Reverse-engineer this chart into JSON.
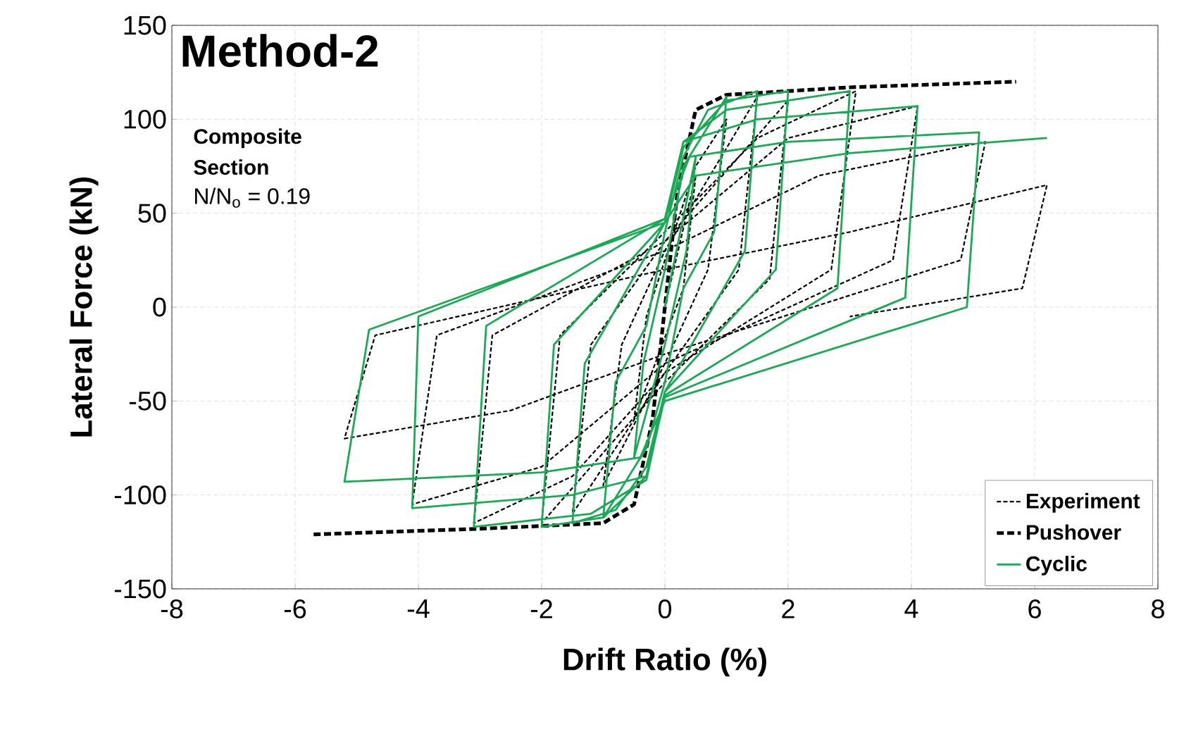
{
  "chart_data": {
    "type": "line",
    "title": "Method-2",
    "xlabel": "Drift Ratio (%)",
    "ylabel": "Lateral Force (kN)",
    "annotations": [
      "Composite Section",
      "N/N$_{o}$ = 0.19"
    ],
    "xlim": [
      -8,
      8
    ],
    "xticks": [
      -8,
      -6,
      -4,
      -2,
      0,
      2,
      4,
      6,
      8
    ],
    "ylim": [
      -150,
      150
    ],
    "yticks": [
      -150,
      -100,
      -50,
      0,
      50,
      100,
      150
    ],
    "grid": true,
    "legend": "bottom right",
    "marker": "none",
    "series": [
      {
        "name": "Experiment",
        "color": "#000000",
        "line_style": "dashed",
        "x": [
          0,
          0.5,
          0.3,
          -0.5,
          -0.3,
          0.5,
          1,
          0.7,
          0,
          -1,
          -0.7,
          0,
          1.5,
          1.2,
          0,
          -1.5,
          -1.2,
          0,
          2,
          1.7,
          0,
          -2,
          -1.7,
          0,
          1.5,
          3.1,
          2.7,
          0,
          -1.5,
          -3.1,
          -2.8,
          0,
          2,
          4.1,
          3.7,
          0,
          -2,
          -4.1,
          -3.7,
          0,
          2.5,
          5.2,
          4.8,
          0,
          -2.5,
          -5.2,
          -4.7,
          0,
          3,
          6.2,
          5.8,
          3
        ],
        "values": [
          0,
          70,
          10,
          -60,
          -5,
          75,
          100,
          20,
          -30,
          -95,
          -20,
          30,
          112,
          20,
          -35,
          -110,
          -20,
          35,
          110,
          15,
          -40,
          -115,
          -15,
          40,
          90,
          115,
          20,
          -35,
          -90,
          -115,
          -15,
          35,
          90,
          107,
          25,
          -30,
          -85,
          -105,
          -15,
          30,
          70,
          88,
          25,
          -25,
          -55,
          -70,
          -15,
          20,
          40,
          65,
          10,
          -5
        ]
      },
      {
        "name": "Pushover",
        "color": "#000000",
        "line_style": "dashed",
        "x": [
          -5.7,
          -3,
          -1,
          -0.5,
          -0.2,
          0,
          0.2,
          0.5,
          1,
          3,
          5.7
        ],
        "values": [
          -121,
          -118,
          -115,
          -105,
          -60,
          0,
          60,
          105,
          113,
          117,
          120
        ]
      },
      {
        "name": "Cyclic",
        "color": "#1aaa55",
        "line_style": "solid",
        "x": [
          0,
          0.5,
          0.35,
          0,
          -0.5,
          -0.35,
          0,
          0.3,
          1,
          0.8,
          0.3,
          0,
          -0.3,
          -1,
          -0.8,
          -0.3,
          0,
          0.3,
          0.7,
          1.5,
          1.3,
          0,
          -0.3,
          -0.8,
          -1.5,
          -1.3,
          0,
          0.3,
          1,
          2,
          1.8,
          0,
          -0.3,
          -1,
          -2,
          -1.8,
          0,
          0.3,
          1,
          3,
          2.8,
          0,
          -0.3,
          -1.2,
          -3.1,
          -2.9,
          0,
          0.3,
          1.5,
          4.1,
          3.9,
          0,
          -0.3,
          -1.5,
          -4.1,
          -4,
          0,
          0.4,
          2,
          5.1,
          4.9,
          0,
          -0.4,
          -2,
          -5.2,
          -4.8,
          0,
          0.5,
          3,
          6.2
        ],
        "values": [
          0,
          80,
          30,
          -20,
          -80,
          -30,
          20,
          75,
          112,
          40,
          10,
          -40,
          -75,
          -112,
          -40,
          -10,
          40,
          80,
          105,
          115,
          30,
          -45,
          -85,
          -108,
          -115,
          -30,
          45,
          85,
          110,
          115,
          20,
          -45,
          -90,
          -112,
          -117,
          -20,
          45,
          88,
          105,
          115,
          10,
          -47,
          -92,
          -110,
          -117,
          -10,
          47,
          88,
          100,
          107,
          5,
          -48,
          -90,
          -100,
          -107,
          -5,
          47,
          80,
          88,
          93,
          0,
          -50,
          -80,
          -88,
          -93,
          -12,
          45,
          70,
          82,
          90
        ]
      }
    ]
  }
}
